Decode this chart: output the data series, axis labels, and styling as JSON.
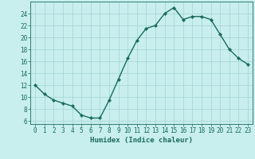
{
  "x": [
    0,
    1,
    2,
    3,
    4,
    5,
    6,
    7,
    8,
    9,
    10,
    11,
    12,
    13,
    14,
    15,
    16,
    17,
    18,
    19,
    20,
    21,
    22,
    23
  ],
  "y": [
    12,
    10.5,
    9.5,
    9.0,
    8.5,
    7.0,
    6.5,
    6.5,
    9.5,
    13.0,
    16.5,
    19.5,
    21.5,
    22.0,
    24.0,
    25.0,
    23.0,
    23.5,
    23.5,
    23.0,
    20.5,
    18.0,
    16.5,
    15.5
  ],
  "line_color": "#1a6b5a",
  "marker": "D",
  "marker_size": 2.2,
  "background_color": "#c8eeee",
  "grid_color": "#a8d8d8",
  "xlabel": "Humidex (Indice chaleur)",
  "xlim": [
    -0.5,
    23.5
  ],
  "ylim": [
    5.5,
    26
  ],
  "yticks": [
    6,
    8,
    10,
    12,
    14,
    16,
    18,
    20,
    22,
    24
  ],
  "xticks": [
    0,
    1,
    2,
    3,
    4,
    5,
    6,
    7,
    8,
    9,
    10,
    11,
    12,
    13,
    14,
    15,
    16,
    17,
    18,
    19,
    20,
    21,
    22,
    23
  ],
  "tick_fontsize": 5.5,
  "xlabel_fontsize": 6.5,
  "linewidth": 1.0
}
